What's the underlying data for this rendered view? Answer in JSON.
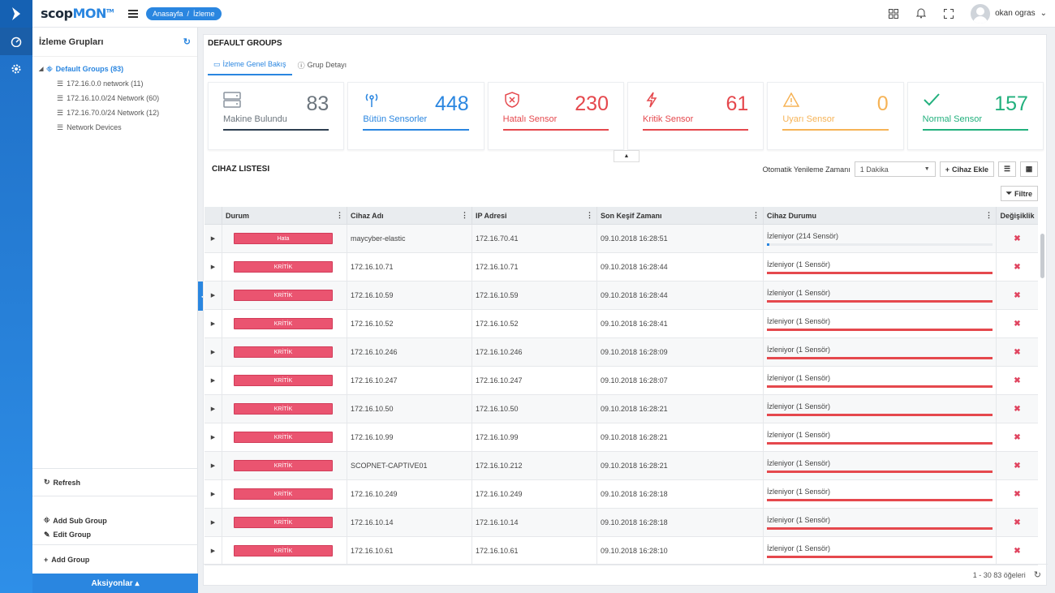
{
  "app": {
    "brand_main": "scop",
    "brand_accent": "MON",
    "brand_tm": "TM"
  },
  "breadcrumb": {
    "home": "Anasayfa",
    "sep": "/",
    "current": "İzleme"
  },
  "user": {
    "name": "okan ogras"
  },
  "sidebar": {
    "title": "İzleme Grupları",
    "root": "Default Groups (83)",
    "children": [
      "172.16.0.0 network (11)",
      "172.16.10.0/24 Network (60)",
      "172.16.70.0/24 Network (12)",
      "Network Devices"
    ],
    "actions": {
      "refresh": "Refresh",
      "add_sub_group": "Add Sub Group",
      "edit_group": "Edit Group",
      "add_group": "Add Group"
    },
    "footer": "Aksiyonlar"
  },
  "main": {
    "title": "DEFAULT GROUPS",
    "tabs": [
      "İzleme Genel Bakış",
      "Grup Detayı"
    ]
  },
  "stats": [
    {
      "value": "83",
      "label": "Makine Bulundu",
      "color": "#2d3e50",
      "icon": "server-icon"
    },
    {
      "value": "448",
      "label": "Bütün Sensorler",
      "color": "#2a86e0",
      "icon": "antenna-icon"
    },
    {
      "value": "230",
      "label": "Hatalı Sensor",
      "color": "#e5484d",
      "icon": "shield-x-icon"
    },
    {
      "value": "61",
      "label": "Kritik Sensor",
      "color": "#e5484d",
      "icon": "lightning-icon"
    },
    {
      "value": "0",
      "label": "Uyarı Sensor",
      "color": "#f6b356",
      "icon": "warning-icon"
    },
    {
      "value": "157",
      "label": "Normal Sensor",
      "color": "#22b07d",
      "icon": "check-icon"
    }
  ],
  "device_list": {
    "title": "CIHAZ LISTESI",
    "refresh_label": "Otomatik Yenileme Zamanı",
    "refresh_value": "1 Dakika",
    "add_button": "Cihaz Ekle",
    "filter_button": "Filtre",
    "columns": [
      "Durum",
      "Cihaz Adı",
      "IP Adresi",
      "Son Keşif Zamanı",
      "Cihaz Durumu",
      "Değişiklik"
    ],
    "rows": [
      {
        "status": "Hata",
        "name": "maycyber-elastic",
        "ip": "172.16.70.41",
        "time": "09.10.2018 16:28:51",
        "state": "İzleniyor (214 Sensör)",
        "progress": 0.01
      },
      {
        "status": "KRİTİK",
        "name": "172.16.10.71",
        "ip": "172.16.10.71",
        "time": "09.10.2018 16:28:44",
        "state": "İzleniyor (1 Sensör)",
        "progress": 1
      },
      {
        "status": "KRİTİK",
        "name": "172.16.10.59",
        "ip": "172.16.10.59",
        "time": "09.10.2018 16:28:44",
        "state": "İzleniyor (1 Sensör)",
        "progress": 1
      },
      {
        "status": "KRİTİK",
        "name": "172.16.10.52",
        "ip": "172.16.10.52",
        "time": "09.10.2018 16:28:41",
        "state": "İzleniyor (1 Sensör)",
        "progress": 1
      },
      {
        "status": "KRİTİK",
        "name": "172.16.10.246",
        "ip": "172.16.10.246",
        "time": "09.10.2018 16:28:09",
        "state": "İzleniyor (1 Sensör)",
        "progress": 1
      },
      {
        "status": "KRİTİK",
        "name": "172.16.10.247",
        "ip": "172.16.10.247",
        "time": "09.10.2018 16:28:07",
        "state": "İzleniyor (1 Sensör)",
        "progress": 1
      },
      {
        "status": "KRİTİK",
        "name": "172.16.10.50",
        "ip": "172.16.10.50",
        "time": "09.10.2018 16:28:21",
        "state": "İzleniyor (1 Sensör)",
        "progress": 1
      },
      {
        "status": "KRİTİK",
        "name": "172.16.10.99",
        "ip": "172.16.10.99",
        "time": "09.10.2018 16:28:21",
        "state": "İzleniyor (1 Sensör)",
        "progress": 1
      },
      {
        "status": "KRİTİK",
        "name": "SCOPNET-CAPTIVE01",
        "ip": "172.16.10.212",
        "time": "09.10.2018 16:28:21",
        "state": "İzleniyor (1 Sensör)",
        "progress": 1
      },
      {
        "status": "KRİTİK",
        "name": "172.16.10.249",
        "ip": "172.16.10.249",
        "time": "09.10.2018 16:28:18",
        "state": "İzleniyor (1 Sensör)",
        "progress": 1
      },
      {
        "status": "KRİTİK",
        "name": "172.16.10.14",
        "ip": "172.16.10.14",
        "time": "09.10.2018 16:28:18",
        "state": "İzleniyor (1 Sensör)",
        "progress": 1
      },
      {
        "status": "KRİTİK",
        "name": "172.16.10.61",
        "ip": "172.16.10.61",
        "time": "09.10.2018 16:28:10",
        "state": "İzleniyor (1 Sensör)",
        "progress": 1
      }
    ],
    "pager": "1 - 30 83 öğeleri",
    "progress_color": "#e5484d"
  }
}
